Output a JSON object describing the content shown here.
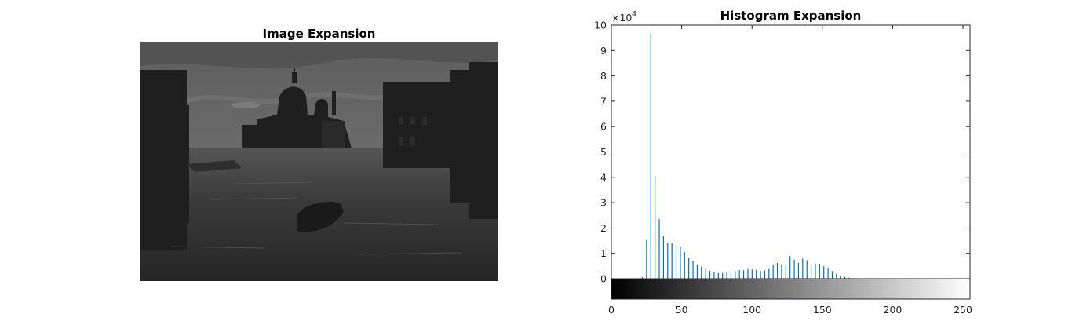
{
  "left_panel": {
    "title": "Image Expansion"
  },
  "right_panel": {
    "title": "Histogram Expansion"
  },
  "chart_data": {
    "type": "bar",
    "title": "Histogram Expansion",
    "xlabel": "",
    "ylabel": "",
    "xlim": [
      0,
      255
    ],
    "ylim": [
      0,
      100000
    ],
    "y_exponent_label": "×10",
    "y_exponent_power": "4",
    "y_ticks": [
      0,
      1,
      2,
      3,
      4,
      5,
      6,
      7,
      8,
      9,
      10
    ],
    "x_ticks": [
      0,
      50,
      100,
      150,
      200,
      250
    ],
    "grid": false,
    "colorbar": "grayscale 0-255 below x-axis",
    "bar_color": "#0072BD",
    "x": [
      22,
      25,
      28,
      31,
      34,
      37,
      40,
      43,
      46,
      49,
      52,
      55,
      58,
      61,
      64,
      67,
      70,
      73,
      76,
      79,
      82,
      85,
      88,
      91,
      94,
      97,
      100,
      103,
      106,
      109,
      112,
      115,
      118,
      121,
      124,
      127,
      130,
      133,
      136,
      139,
      142,
      145,
      148,
      151,
      154,
      157,
      160,
      163,
      166,
      169,
      172,
      175,
      178
    ],
    "values": [
      600,
      15300,
      96700,
      40500,
      23500,
      16700,
      14000,
      13900,
      13300,
      12600,
      10500,
      8100,
      7000,
      5600,
      4800,
      3800,
      3100,
      2700,
      2200,
      2300,
      2400,
      2600,
      3000,
      3400,
      3300,
      3800,
      3600,
      3500,
      3100,
      3300,
      3700,
      5300,
      6200,
      5500,
      5600,
      8900,
      7500,
      6300,
      7900,
      7300,
      5100,
      6000,
      5900,
      4900,
      4300,
      3000,
      2000,
      1200,
      700,
      400,
      200,
      100,
      100
    ]
  }
}
